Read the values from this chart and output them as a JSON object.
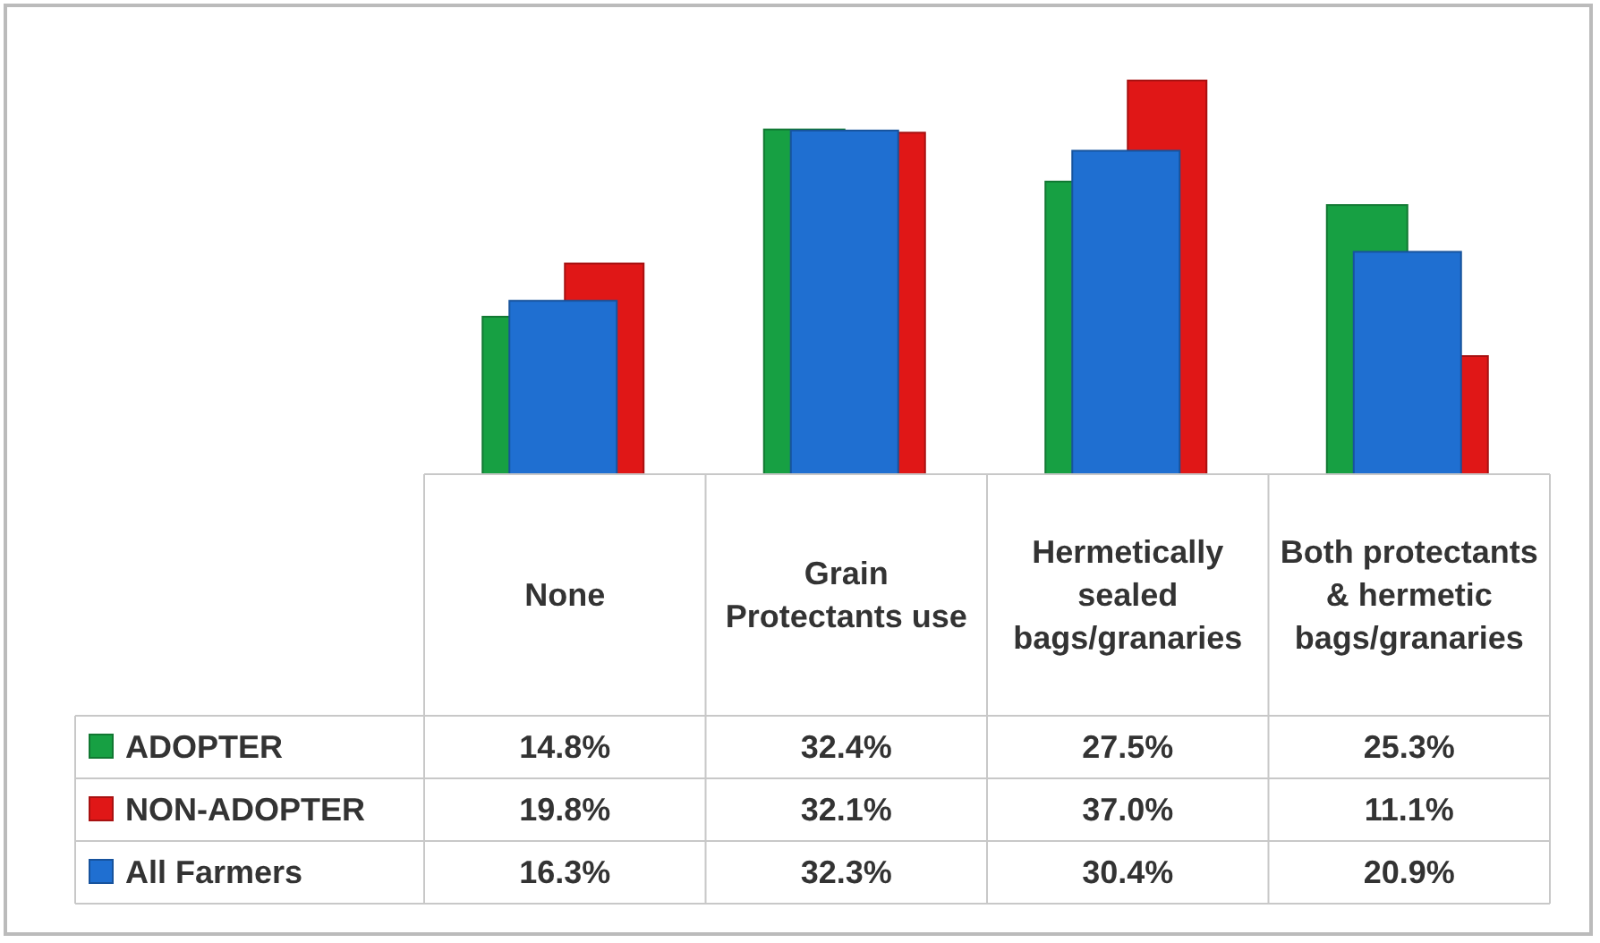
{
  "chart_data": {
    "type": "bar",
    "categories": [
      "None",
      "Grain Protectants use",
      "Hermetically sealed bags/granaries",
      "Both protectants & hermetic bags/granaries"
    ],
    "series": [
      {
        "name": "ADOPTER",
        "color": "#17a043",
        "values": [
          14.8,
          32.4,
          27.5,
          25.3
        ],
        "value_labels": [
          "14.8%",
          "32.4%",
          "27.5%",
          "25.3%"
        ]
      },
      {
        "name": "NON-ADOPTER",
        "color": "#e01717",
        "values": [
          19.8,
          32.1,
          37.0,
          11.1
        ],
        "value_labels": [
          "19.8%",
          "32.1%",
          "37.0%",
          "11.1%"
        ]
      },
      {
        "name": "All Farmers",
        "color": "#1f6fd1",
        "values": [
          16.3,
          32.3,
          30.4,
          20.9
        ],
        "value_labels": [
          "16.3%",
          "32.3%",
          "30.4%",
          "20.9%"
        ]
      }
    ],
    "legend": "bottom"
  }
}
